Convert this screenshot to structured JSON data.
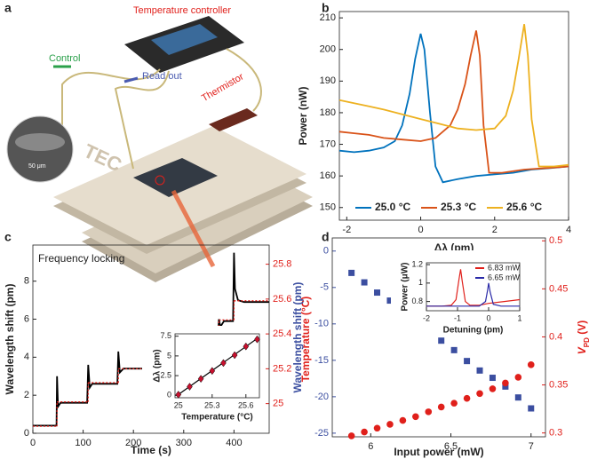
{
  "panel_labels": [
    "a",
    "b",
    "c",
    "d"
  ],
  "illustration": {
    "controller": "Temperature controller",
    "control": "Control",
    "readout": "Read out",
    "thermistor": "Thermistor",
    "tec": "TEC",
    "scale": "50 μm"
  },
  "chart_data": [
    {
      "type": "line",
      "xlabel": "Δλ (pm)",
      "ylabel": "Power (nW)",
      "xlim": [
        -2.2,
        4
      ],
      "xticks": [
        -2,
        0,
        2,
        4
      ],
      "ylim": [
        146,
        212
      ],
      "yticks": [
        150,
        160,
        170,
        180,
        190,
        200,
        210
      ],
      "legend": "lower center",
      "series": [
        {
          "name": "25.0 °C",
          "color": "#0072BD",
          "x": [
            -2.2,
            -1.8,
            -1.4,
            -1.0,
            -0.7,
            -0.5,
            -0.3,
            -0.15,
            0,
            0.1,
            0.25,
            0.4,
            0.6,
            1.0,
            1.5,
            2.0,
            2.5,
            3.0,
            3.5,
            4.0
          ],
          "values": [
            168,
            167.5,
            168,
            169,
            171,
            176,
            186,
            197,
            205,
            200,
            180,
            163,
            158,
            159,
            160,
            160.5,
            161,
            162,
            162.5,
            163
          ]
        },
        {
          "name": "25.3 °C",
          "color": "#D95319",
          "x": [
            -2.2,
            -1.8,
            -1.4,
            -1.0,
            -0.5,
            0,
            0.4,
            0.8,
            1.0,
            1.2,
            1.35,
            1.5,
            1.6,
            1.7,
            1.85,
            2.2,
            2.8,
            3.4,
            4.0
          ],
          "values": [
            174,
            173.5,
            173,
            172,
            171.5,
            171,
            172,
            176,
            181,
            189,
            198,
            206,
            198,
            176,
            161,
            161,
            162,
            162.5,
            163
          ]
        },
        {
          "name": "25.6 °C",
          "color": "#EDB120",
          "x": [
            -2.2,
            -1.8,
            -1.4,
            -1.0,
            -0.5,
            0,
            0.5,
            1.0,
            1.5,
            2.0,
            2.3,
            2.5,
            2.65,
            2.8,
            2.9,
            3.0,
            3.2,
            3.6,
            4.0
          ],
          "values": [
            184,
            183,
            182,
            181,
            179.5,
            178,
            176.5,
            175,
            174.5,
            175,
            179,
            187,
            197,
            208,
            198,
            178,
            163,
            163,
            163.5
          ]
        }
      ]
    },
    {
      "type": "line",
      "xlabel": "Time (s)",
      "ylabel": "Wavelength shift (pm)",
      "y2label": "Temperature (°C)",
      "annotation": "Frequency locking",
      "xlim": [
        0,
        470
      ],
      "xticks": [
        0,
        100,
        200,
        300,
        400
      ],
      "ylim": [
        0,
        9.9
      ],
      "yticks": [
        0,
        2,
        4,
        6,
        8
      ],
      "y2lim": [
        24.83,
        25.91
      ],
      "y2ticks": [
        25,
        25.2,
        25.4,
        25.6,
        25.8
      ],
      "ycolor": "#222",
      "y2color": "#e0201b",
      "series": [
        {
          "color": "#000",
          "mode": "line",
          "x": [
            0,
            47,
            48,
            50,
            55,
            108,
            110,
            113,
            118,
            168,
            170,
            173,
            180,
            238,
            240,
            243,
            250,
            308,
            310,
            313,
            320,
            368,
            370,
            373,
            380,
            398,
            400,
            402,
            408,
            420,
            470
          ],
          "values": [
            0.4,
            0.4,
            3.0,
            1.4,
            1.6,
            1.6,
            3.6,
            2.4,
            2.6,
            2.6,
            4.3,
            3.2,
            3.4,
            3.4,
            5.1,
            4.0,
            4.3,
            4.3,
            5.6,
            4.7,
            5.0,
            5.0,
            6.0,
            5.6,
            5.9,
            5.9,
            9.5,
            7.6,
            7.0,
            6.9,
            6.9
          ]
        },
        {
          "color": "#e0201b",
          "mode": "step",
          "axis": "y2",
          "x": [
            0,
            48,
            110,
            170,
            240,
            310,
            370,
            400
          ],
          "values": [
            24.87,
            25.01,
            25.12,
            25.2,
            25.3,
            25.38,
            25.48,
            25.59
          ]
        }
      ]
    },
    {
      "type": "scatter",
      "xlabel": "Temperature (°C)",
      "ylabel": "Δλ (pm)",
      "xlim": [
        24.97,
        25.72
      ],
      "xticks": [
        25,
        25.3,
        25.6
      ],
      "ylim": [
        -0.3,
        7.8
      ],
      "yticks": [
        0,
        2.5,
        5,
        7.5
      ],
      "series": [
        {
          "color": "#000",
          "mode": "line",
          "x": [
            25,
            25.7
          ],
          "values": [
            0.1,
            7.2
          ]
        },
        {
          "color": "#c8102e",
          "mode": "diamond",
          "x": [
            25.0,
            25.1,
            25.2,
            25.3,
            25.4,
            25.5,
            25.6,
            25.7
          ],
          "values": [
            0.1,
            1.1,
            2.1,
            3.1,
            4.1,
            5.1,
            6.2,
            7.1
          ]
        }
      ]
    },
    {
      "type": "scatter",
      "xlabel": "Input power (mW)",
      "ylabel": "Wavelength shift (pm)",
      "y2label": {
        "main": "V",
        "sub": "PD",
        "unit": " (V)"
      },
      "xlim": [
        5.76,
        7.09
      ],
      "xticks": [
        6,
        6.5,
        7
      ],
      "ylim": [
        -25.5,
        1.8
      ],
      "yticks": [
        -25,
        -20,
        -15,
        -10,
        -5,
        0
      ],
      "y2lim": [
        0.296,
        0.503
      ],
      "y2ticks": [
        0.3,
        0.35,
        0.4,
        0.45,
        0.5
      ],
      "ycolor": "#3b4ea0",
      "y2color": "#e0201b",
      "series": [
        {
          "color": "#3b4ea0",
          "mode": "square",
          "x": [
            5.88,
            5.96,
            6.04,
            6.12,
            6.2,
            6.28,
            6.36,
            6.44,
            6.52,
            6.6,
            6.68,
            6.76,
            6.84,
            6.92,
            7.0
          ],
          "values": [
            -3,
            -4.3,
            -5.7,
            -6.8,
            -8.3,
            -9.5,
            -10.7,
            -12.3,
            -13.6,
            -15.1,
            -16.4,
            -17.4,
            -18.6,
            -20.1,
            -21.6
          ]
        },
        {
          "color": "#e0201b",
          "mode": "circle",
          "axis": "y2",
          "x": [
            5.88,
            5.96,
            6.04,
            6.12,
            6.2,
            6.28,
            6.36,
            6.44,
            6.52,
            6.6,
            6.68,
            6.76,
            6.84,
            6.92,
            7.0
          ],
          "values": [
            0.297,
            0.301,
            0.305,
            0.309,
            0.313,
            0.317,
            0.322,
            0.327,
            0.331,
            0.336,
            0.341,
            0.346,
            0.352,
            0.358,
            0.371
          ]
        }
      ]
    },
    {
      "type": "line",
      "xlabel": "Detuning (pm)",
      "ylabel": "Power (μW)",
      "xlim": [
        -2,
        1
      ],
      "xticks": [
        -2,
        -1,
        0,
        1
      ],
      "ylim": [
        0.7,
        1.22
      ],
      "yticks": [
        0.8,
        1,
        1.2
      ],
      "legend": "upper right",
      "series": [
        {
          "name": "6.83 mW",
          "color": "#e0201b",
          "mode": "line",
          "x": [
            -2,
            -1.5,
            -1.2,
            -1.05,
            -0.95,
            -0.9,
            -0.85,
            -0.75,
            -0.6,
            -0.3,
            0,
            0.5,
            1
          ],
          "values": [
            0.75,
            0.75,
            0.76,
            0.82,
            1.05,
            1.15,
            1.02,
            0.8,
            0.76,
            0.76,
            0.78,
            0.8,
            0.82
          ]
        },
        {
          "name": "6.65 mW",
          "color": "#2a2aa8",
          "mode": "line",
          "x": [
            -2,
            -1,
            -0.3,
            -0.1,
            -0.03,
            0,
            0.05,
            0.15,
            0.4,
            1
          ],
          "values": [
            0.75,
            0.75,
            0.75,
            0.8,
            0.93,
            1.0,
            0.9,
            0.77,
            0.75,
            0.75
          ]
        }
      ]
    }
  ]
}
